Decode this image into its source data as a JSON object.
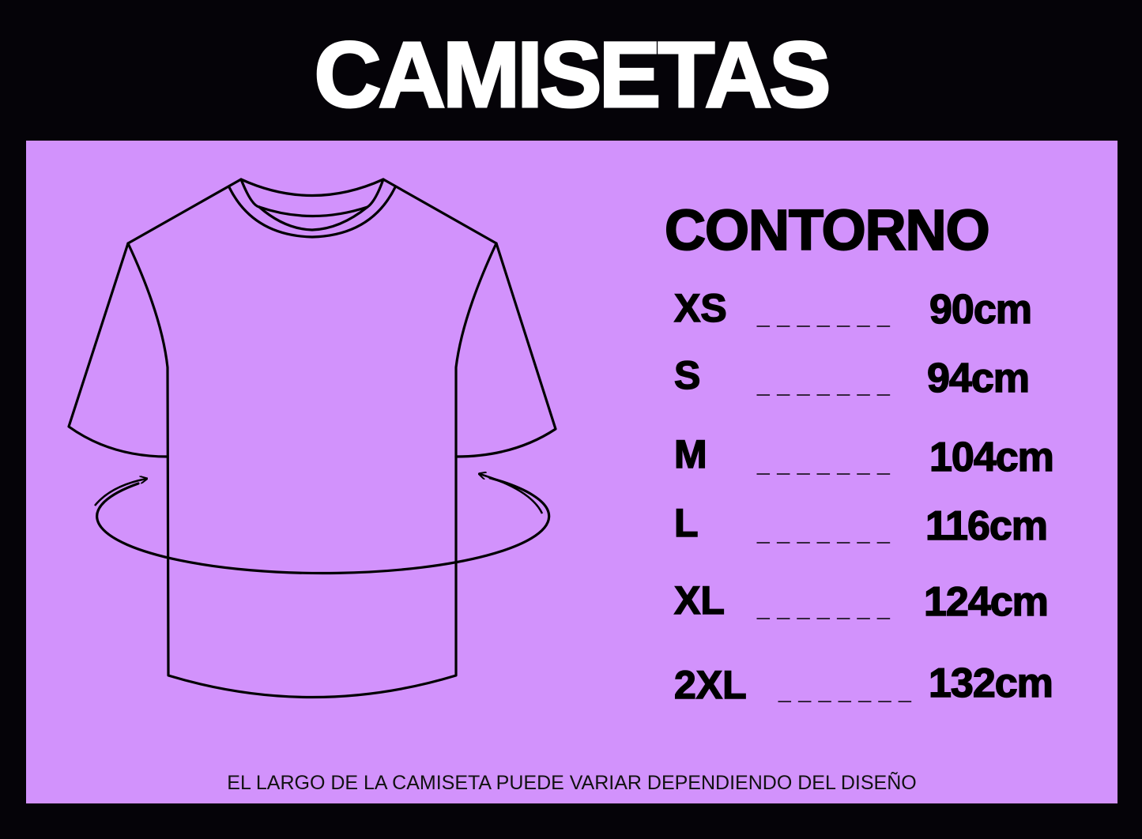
{
  "title": "CAMISETAS",
  "colors": {
    "background": "#050308",
    "panel": "#d292fc",
    "title": "#ffffff"
  },
  "illustration": "t-shirt-outline-with-circumference-arrow",
  "heading": "CONTORNO",
  "sizes": [
    {
      "size": "XS",
      "dots": "_ _ _ _ _ _ _",
      "value": "90cm"
    },
    {
      "size": "S",
      "dots": "_ _ _ _ _ _ _",
      "value": "94cm"
    },
    {
      "size": "M",
      "dots": "_ _ _ _ _ _ _",
      "value": "104cm"
    },
    {
      "size": "L",
      "dots": "_ _ _ _ _ _ _",
      "value": "116cm"
    },
    {
      "size": "XL",
      "dots": "_ _ _ _ _ _ _",
      "value": "124cm"
    },
    {
      "size": "2XL",
      "dots": "_ _ _ _ _ _ _",
      "value": "132cm"
    }
  ],
  "footer": "EL LARGO DE LA CAMISETA PUEDE VARIAR DEPENDIENDO DEL DISEÑO"
}
